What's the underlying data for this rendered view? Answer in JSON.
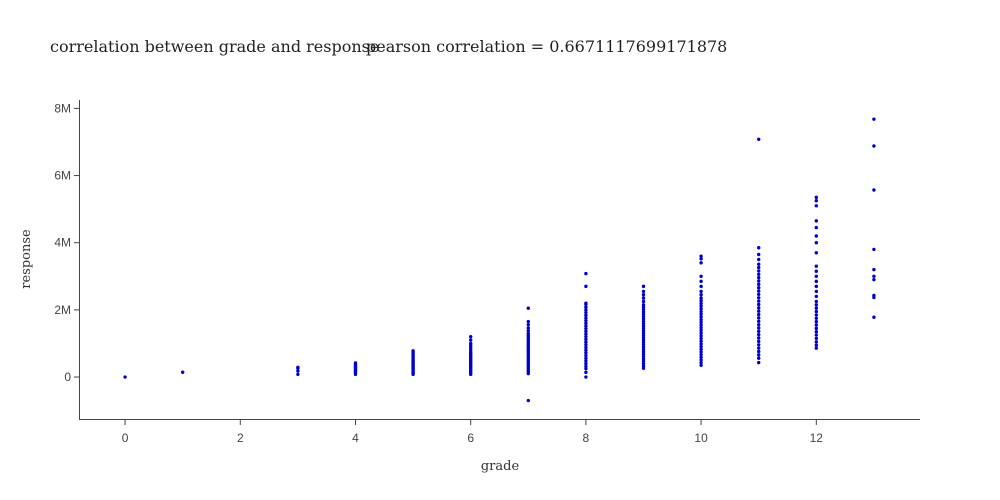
{
  "chart_data": {
    "type": "scatter",
    "title": "correlation between grade and response",
    "subtitle": "pearson correlation = 0.6671117699171878",
    "xlabel": "grade",
    "ylabel": "response",
    "xlim": [
      -0.8,
      13.8
    ],
    "ylim": [
      -1250000,
      8250000
    ],
    "xticks": [
      0,
      2,
      4,
      6,
      8,
      10,
      12
    ],
    "yticks": [
      0,
      2000000,
      4000000,
      6000000,
      8000000
    ],
    "ytick_labels": [
      "0",
      "2M",
      "4M",
      "6M",
      "8M"
    ],
    "grid": false,
    "color": "#0000cc",
    "series": [
      {
        "grade": 0,
        "values": [
          0
        ]
      },
      {
        "grade": 1,
        "values": [
          142000
        ]
      },
      {
        "grade": 3,
        "values": [
          80000,
          180000,
          262000,
          290000
        ]
      },
      {
        "grade": 4,
        "values": [
          80000,
          120000,
          150000,
          180000,
          200000,
          230000,
          260000,
          290000,
          320000,
          350000,
          380000,
          420000
        ]
      },
      {
        "grade": 5,
        "values": [
          80000,
          110000,
          140000,
          170000,
          200000,
          230000,
          260000,
          290000,
          320000,
          350000,
          380000,
          410000,
          440000,
          470000,
          500000,
          540000,
          580000,
          620000,
          660000,
          700000,
          740000,
          780000
        ]
      },
      {
        "grade": 6,
        "values": [
          80000,
          120000,
          160000,
          200000,
          240000,
          280000,
          320000,
          360000,
          400000,
          440000,
          480000,
          520000,
          560000,
          600000,
          640000,
          680000,
          720000,
          760000,
          820000,
          880000,
          940000,
          1000000,
          1100000,
          1200000
        ]
      },
      {
        "grade": 7,
        "values": [
          -700000,
          100000,
          150000,
          200000,
          250000,
          300000,
          350000,
          400000,
          450000,
          500000,
          550000,
          600000,
          650000,
          700000,
          750000,
          800000,
          850000,
          900000,
          950000,
          1000000,
          1050000,
          1100000,
          1150000,
          1200000,
          1250000,
          1300000,
          1380000,
          1460000,
          1560000,
          1650000,
          2050000
        ]
      },
      {
        "grade": 8,
        "values": [
          0,
          140000,
          250000,
          320000,
          400000,
          480000,
          560000,
          640000,
          720000,
          800000,
          880000,
          960000,
          1040000,
          1120000,
          1200000,
          1280000,
          1360000,
          1440000,
          1520000,
          1600000,
          1680000,
          1760000,
          1840000,
          1920000,
          2000000,
          2080000,
          2160000,
          2200000,
          2700000,
          3080000
        ]
      },
      {
        "grade": 9,
        "values": [
          260000,
          330000,
          400000,
          470000,
          540000,
          610000,
          680000,
          750000,
          820000,
          890000,
          960000,
          1030000,
          1100000,
          1170000,
          1240000,
          1310000,
          1380000,
          1450000,
          1520000,
          1590000,
          1660000,
          1730000,
          1800000,
          1870000,
          1940000,
          2010000,
          2080000,
          2150000,
          2250000,
          2350000,
          2450000,
          2550000,
          2700000
        ]
      },
      {
        "grade": 10,
        "values": [
          350000,
          430000,
          510000,
          590000,
          670000,
          750000,
          830000,
          910000,
          990000,
          1070000,
          1150000,
          1230000,
          1310000,
          1390000,
          1470000,
          1550000,
          1630000,
          1710000,
          1790000,
          1870000,
          1950000,
          2030000,
          2110000,
          2190000,
          2270000,
          2350000,
          2450000,
          2550000,
          2700000,
          2850000,
          3000000,
          3400000,
          3520000,
          3600000
        ]
      },
      {
        "grade": 11,
        "values": [
          430000,
          560000,
          660000,
          760000,
          860000,
          960000,
          1060000,
          1160000,
          1260000,
          1360000,
          1460000,
          1560000,
          1660000,
          1760000,
          1860000,
          1960000,
          2060000,
          2160000,
          2260000,
          2360000,
          2460000,
          2560000,
          2660000,
          2760000,
          2860000,
          2960000,
          3060000,
          3160000,
          3260000,
          3360000,
          3500000,
          3650000,
          3850000,
          7080000
        ]
      },
      {
        "grade": 12,
        "values": [
          860000,
          950000,
          1050000,
          1150000,
          1250000,
          1350000,
          1450000,
          1550000,
          1650000,
          1750000,
          1850000,
          1950000,
          2050000,
          2150000,
          2250000,
          2400000,
          2550000,
          2700000,
          2850000,
          3000000,
          3150000,
          3300000,
          3700000,
          4000000,
          4200000,
          4450000,
          4650000,
          5100000,
          5250000,
          5350000
        ]
      },
      {
        "grade": 13,
        "values": [
          1780000,
          2370000,
          2430000,
          2900000,
          3000000,
          3200000,
          3800000,
          5570000,
          6880000,
          7680000
        ]
      }
    ]
  }
}
